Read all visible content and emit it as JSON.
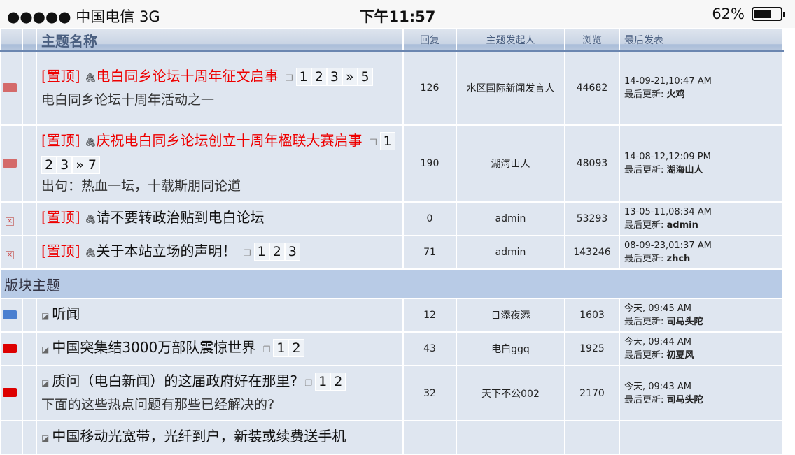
{
  "status": {
    "carrier": "●●●●● 中国电信  3G",
    "time": "下午11:57",
    "battery": "62%",
    "battery_level": 0.62
  },
  "header": {
    "title": "主题名称",
    "replies": "回复",
    "author": "主题发起人",
    "views": "浏览",
    "last": "最后发表"
  },
  "section_label": "版块主题",
  "last_prefix": "最后更新: ",
  "sticky_label": "[置顶]",
  "rows": [
    {
      "icon": "folder-red-light",
      "sticky": true,
      "title": "电白同乡论坛十周年征文启事",
      "pages": [
        "1",
        "2",
        "3",
        "»",
        "5"
      ],
      "desc": "电白同乡论坛十周年活动之一",
      "replies": "126",
      "author": "水区国际新闻发言人",
      "views": "44682",
      "date": "14-09-21,10:47 AM",
      "last_user": "火鸡"
    },
    {
      "icon": "folder-red-light",
      "sticky": true,
      "title": "庆祝电白同乡论坛创立十周年楹联大赛启事",
      "pages": [
        "1",
        "2",
        "3",
        "» 7"
      ],
      "desc": "出句：热血一坛，十载斯朋同论道",
      "replies": "190",
      "author": "湖海山人",
      "views": "48093",
      "date": "14-08-12,12:09 PM",
      "last_user": "湖海山人"
    },
    {
      "icon": "locked",
      "sticky": true,
      "title": "请不要转政治贴到电白论坛",
      "pages": [],
      "desc": "",
      "replies": "0",
      "author": "admin",
      "views": "53293",
      "date": "13-05-11,08:34 AM",
      "last_user": "admin"
    },
    {
      "icon": "locked",
      "sticky": true,
      "title": "关于本站立场的声明！",
      "pages": [
        "1",
        "2",
        "3"
      ],
      "desc": "",
      "replies": "71",
      "author": "admin",
      "views": "143246",
      "date": "08-09-23,01:37 AM",
      "last_user": "zhch"
    }
  ],
  "forum_rows": [
    {
      "icon": "folder-blue",
      "title": "听闻",
      "pages": [],
      "desc": "",
      "replies": "12",
      "author": "日添夜添",
      "views": "1603",
      "date": "今天, 09:45 AM",
      "last_user": "司马头陀"
    },
    {
      "icon": "folder-red",
      "title": "中国突集结3000万部队震惊世界",
      "pages": [
        "1",
        "2"
      ],
      "desc": "",
      "replies": "43",
      "author": "电白ggq",
      "views": "1925",
      "date": "今天, 09:44 AM",
      "last_user": "初夏风"
    },
    {
      "icon": "folder-red",
      "title": "质问（电白新闻）的这届政府好在那里?",
      "pages": [
        "1",
        "2"
      ],
      "desc": "下面的这些热点问题有那些已经解决的?",
      "replies": "32",
      "author": "天下不公002",
      "views": "2170",
      "date": "今天, 09:43 AM",
      "last_user": "司马头陀"
    },
    {
      "icon": "none",
      "title": "中国移动光宽带，光纤到户，新装或续费送手机",
      "pages": [],
      "desc": "",
      "replies": "",
      "author": "",
      "views": "",
      "date": "",
      "last_user": ""
    }
  ]
}
